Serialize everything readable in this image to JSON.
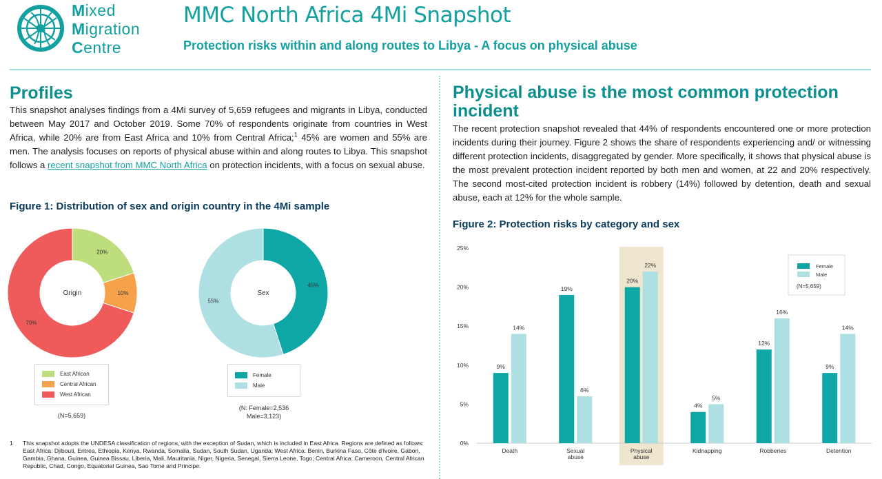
{
  "header": {
    "logo": {
      "line1_first": "M",
      "line1_rest": "ixed",
      "line2_first": "M",
      "line2_rest": "igration",
      "line3_first": "C",
      "line3_rest": "entre"
    },
    "title": "MMC North Africa 4Mi Snapshot",
    "subtitle": "Protection risks within and along routes to Libya - A focus on physical abuse"
  },
  "left": {
    "heading": "Profiles",
    "para_part1": "This snapshot analyses findings from a 4Mi survey of 5,659 refugees and migrants in Libya, conducted between May 2017 and October 2019. Some 70% of respondents originate from countries in West Africa, while 20% are from East Africa and 10% from Central Africa;",
    "para_sup": "1",
    "para_part2": " 45% are women and 55% are men. The analysis focuses on reports of physical abuse within and along routes to Libya. This snapshot follows a ",
    "para_link": "recent snapshot from MMC North Africa",
    "para_part3": " on protection incidents, with a focus on sexual abuse.",
    "figure_title": "Figure 1: Distribution of sex and origin country in the 4Mi sample",
    "footnote_num": "1",
    "footnote": "This snapshot adopts the UNDESA classification of regions, with the exception of Sudan, which is included in East Africa. Regions are defined as follows: East Africa: Djibouti, Eritrea, Ethiopia, Kenya, Rwanda, Somalia, Sudan, South Sudan, Uganda; West Africa: Benin, Burkina Faso, Côte d'Ivoire, Gabon, Gambia, Ghana, Guinea, Guinea Bissau, Liberia, Mali, Mauritania, Niger, Nigeria, Senegal, Sierra Leone, Togo; Central Africa: Cameroon, Central African Republic, Chad, Congo, Equatorial Guinea, Sao Tome and Principe."
  },
  "right": {
    "heading": "Physical abuse is the most common protection incident",
    "para": "The recent protection snapshot revealed that 44% of respondents encountered one or more protection incidents during their journey. Figure 2 shows the share of respondents experiencing and/ or witnessing different protection incidents, disaggregated by gender. More specifically, it shows that physical abuse is the most prevalent protection incident reported by both men and women, at 22 and 20% respectively. The second most-cited protection incident is robbery (14%) followed by detention, death and sexual abuse, each at 12% for the whole sample.",
    "figure_title": "Figure 2: Protection risks by category and sex"
  },
  "chart_data": [
    {
      "type": "pie",
      "center_label": "Origin",
      "labels": [
        "East African",
        "Central African",
        "West African"
      ],
      "values": [
        20,
        10,
        70
      ],
      "value_labels": [
        "20%",
        "10%",
        "70%"
      ],
      "colors": [
        "#bedd7c",
        "#f6a24b",
        "#ef5b5b"
      ],
      "note": "(N=5,659)"
    },
    {
      "type": "pie",
      "center_label": "Sex",
      "labels": [
        "Female",
        "Male"
      ],
      "values": [
        45,
        55
      ],
      "value_labels": [
        "45%",
        "55%"
      ],
      "colors": [
        "#0fa6a6",
        "#addfe3"
      ],
      "note_line1": "(N: Female=2,536",
      "note_line2": "Male=3,123)"
    },
    {
      "type": "bar",
      "categories": [
        [
          "Death"
        ],
        [
          "Sexual",
          "abuse"
        ],
        [
          "Physical",
          "abuse"
        ],
        [
          "Kidnapping"
        ],
        [
          "Robberies"
        ],
        [
          "Detention"
        ]
      ],
      "highlight_index": 2,
      "series": [
        {
          "name": "Female",
          "values": [
            9,
            19,
            20,
            4,
            12,
            9
          ],
          "labels": [
            "9%",
            "19%",
            "20%",
            "4%",
            "12%",
            "9%"
          ],
          "color": "#0fa6a6"
        },
        {
          "name": "Male",
          "values": [
            14,
            6,
            22,
            5,
            16,
            14
          ],
          "labels": [
            "14%",
            "6%",
            "22%",
            "5%",
            "16%",
            "14%"
          ],
          "color": "#addfe3"
        }
      ],
      "ylim": [
        0,
        25
      ],
      "yticks": [
        0,
        5,
        10,
        15,
        20,
        25
      ],
      "ytick_labels": [
        "0%",
        "5%",
        "10%",
        "15%",
        "20%",
        "25%"
      ],
      "legend_placement": "top-right",
      "note": "(N=5,659)",
      "grid": false
    }
  ]
}
